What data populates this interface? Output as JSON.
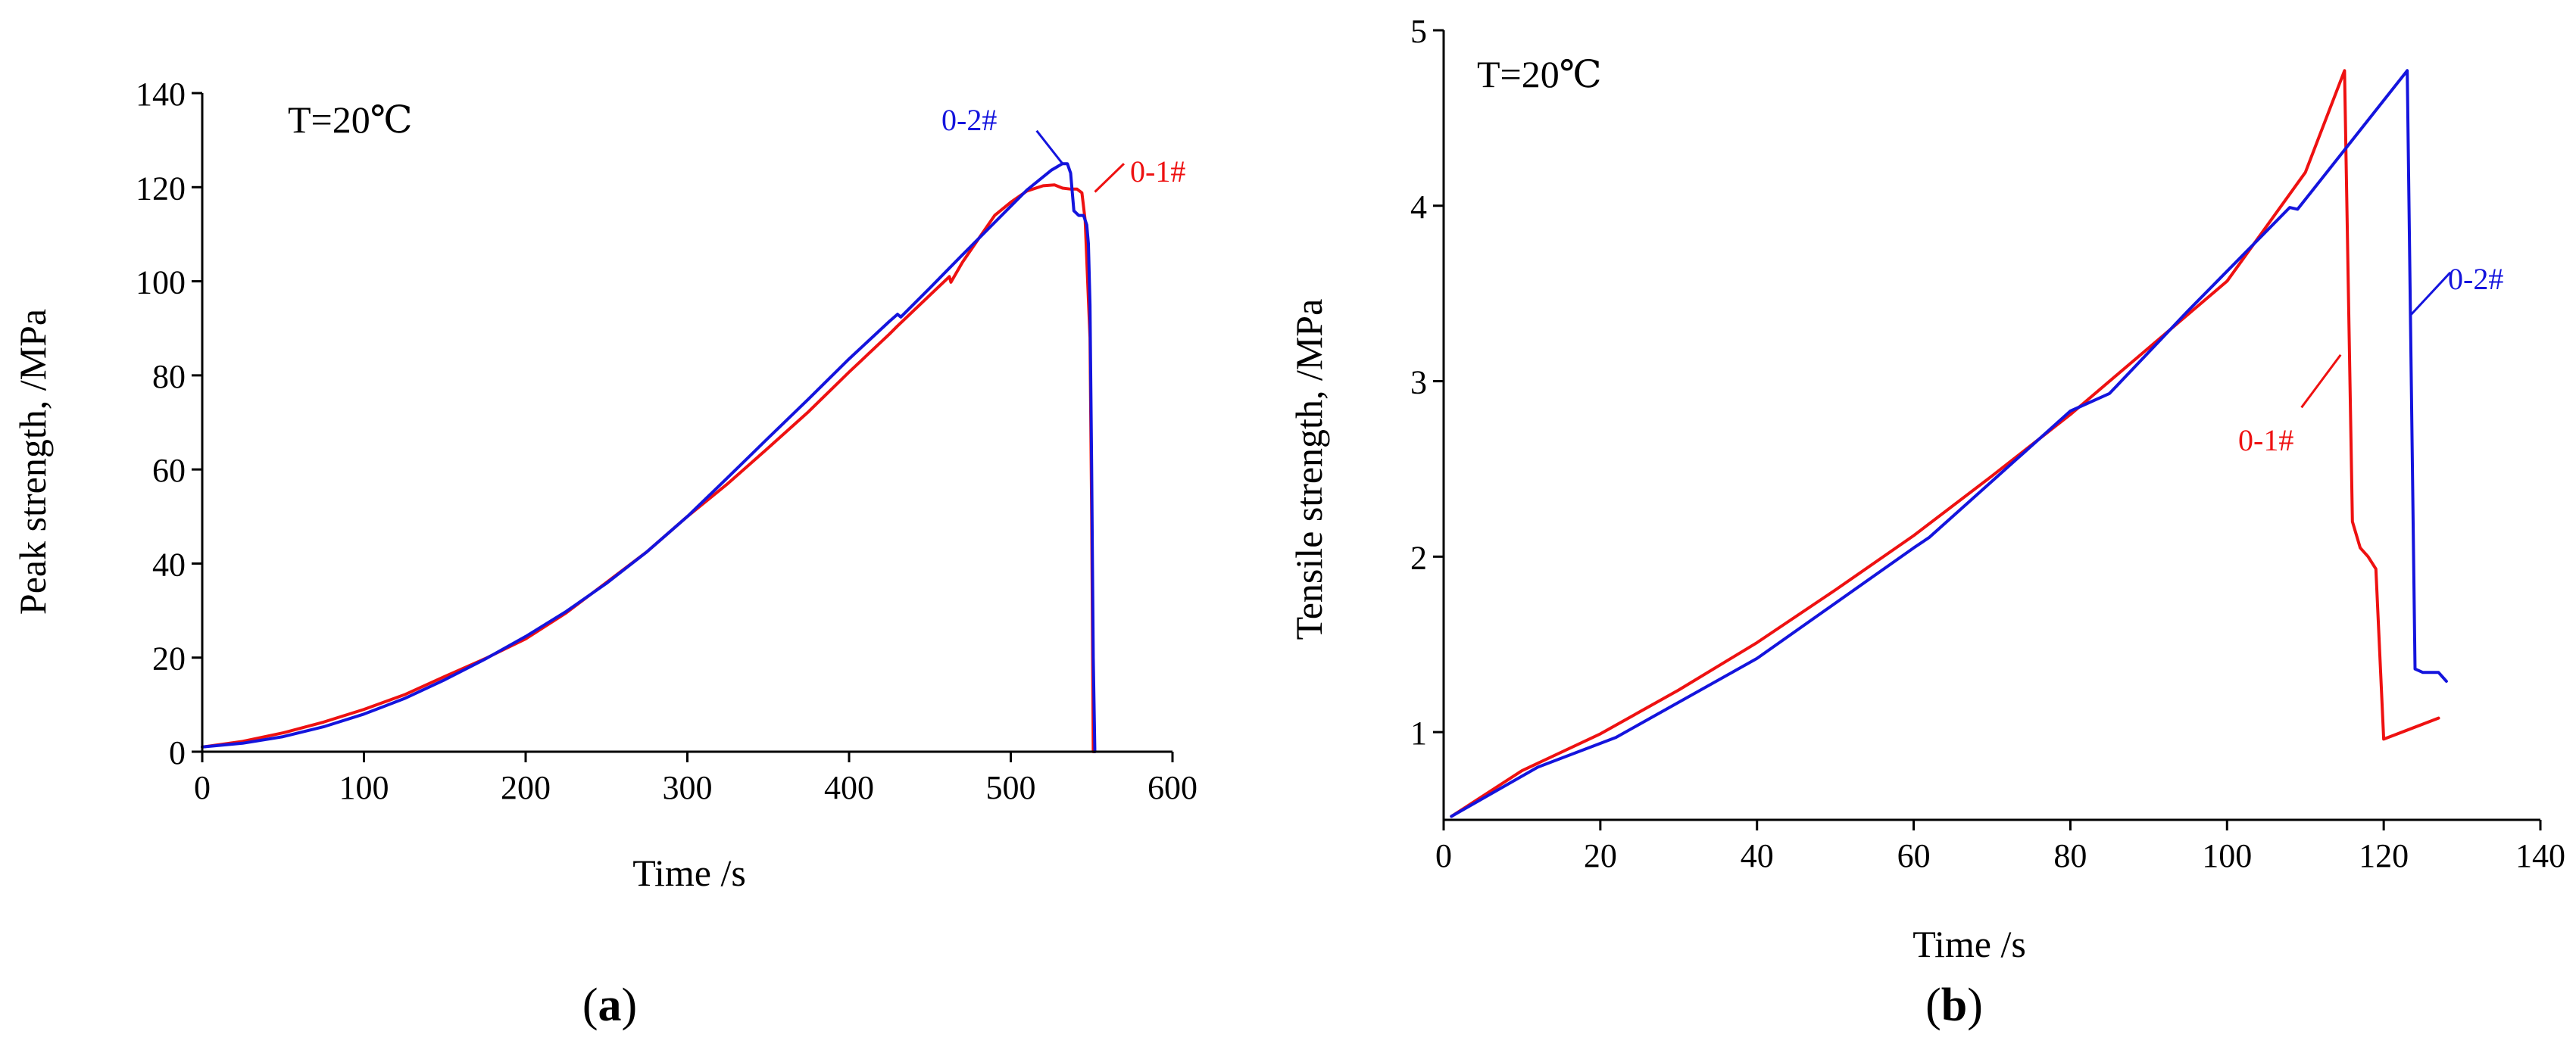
{
  "figure": {
    "panel_a_label": "a",
    "panel_b_label": "b",
    "paren_open": "(",
    "paren_close": ")"
  },
  "colors": {
    "red": "#ee1111",
    "blue": "#1414dd",
    "axis": "#000000"
  },
  "chart_data": [
    {
      "type": "line",
      "panel": "a",
      "title": "",
      "annotation": "T=20℃",
      "xlabel": "Time /s",
      "ylabel": "Peak strength, /MPa",
      "xlim": [
        0,
        600
      ],
      "ylim": [
        0,
        140
      ],
      "xticks": [
        0,
        100,
        200,
        300,
        400,
        500,
        600
      ],
      "yticks": [
        0,
        20,
        40,
        60,
        80,
        100,
        120,
        140
      ],
      "xtick_labels": [
        "0",
        "100",
        "200",
        "300",
        "400",
        "500",
        "600"
      ],
      "ytick_labels": [
        "0",
        "20",
        "40",
        "60",
        "80",
        "100",
        "120",
        "140"
      ],
      "grid": false,
      "series": [
        {
          "name": "0-1#",
          "color": "#ee1111",
          "x": [
            0,
            25,
            50,
            75,
            100,
            125,
            150,
            175,
            200,
            225,
            250,
            275,
            300,
            325,
            350,
            375,
            400,
            425,
            430,
            462,
            463,
            470,
            480,
            490,
            500,
            510,
            520,
            527,
            532,
            537,
            541,
            544,
            546,
            548,
            549,
            550,
            551
          ],
          "y": [
            1,
            2.2,
            4,
            6.3,
            9,
            12.1,
            16,
            19.8,
            24,
            29.5,
            36,
            42.5,
            50,
            57,
            64.6,
            72.3,
            80.7,
            88.8,
            90.5,
            101,
            99.8,
            104,
            109,
            114,
            116.8,
            119.2,
            120.3,
            120.5,
            119.8,
            119.6,
            119.6,
            118.8,
            113,
            96,
            88,
            50,
            0
          ],
          "label_line": [
            [
              552,
              119
            ],
            [
              570,
              125
            ]
          ]
        },
        {
          "name": "0-2#",
          "color": "#1414dd",
          "x": [
            0,
            25,
            50,
            75,
            100,
            125,
            150,
            175,
            200,
            225,
            250,
            275,
            300,
            325,
            350,
            375,
            400,
            425,
            430,
            432,
            450,
            470,
            490,
            510,
            525,
            532,
            535,
            537,
            539,
            542,
            545,
            547,
            548,
            549,
            550,
            551,
            552
          ],
          "y": [
            1,
            1.8,
            3.2,
            5.3,
            8,
            11.3,
            15.3,
            19.7,
            24.5,
            29.8,
            35.8,
            42.5,
            50,
            58.3,
            66.7,
            75,
            83.5,
            91.5,
            93,
            92.4,
            98.6,
            105.6,
            112.5,
            119.4,
            123.6,
            125,
            125,
            123,
            115,
            114,
            114,
            112,
            108,
            95,
            60,
            20,
            0
          ],
          "label_line": [
            [
              532,
              125
            ],
            [
              516,
              132
            ]
          ]
        }
      ]
    },
    {
      "type": "line",
      "panel": "b",
      "title": "",
      "annotation": "T=20℃",
      "xlabel": "Time /s",
      "ylabel": "Tensile strength, /MPa",
      "xlim": [
        0,
        140
      ],
      "ylim": [
        0.5,
        5
      ],
      "xticks": [
        0,
        20,
        40,
        60,
        80,
        100,
        120,
        140
      ],
      "yticks": [
        1,
        2,
        3,
        4,
        5
      ],
      "xtick_labels": [
        "0",
        "20",
        "40",
        "60",
        "80",
        "100",
        "120",
        "140"
      ],
      "ytick_labels": [
        "1",
        "2",
        "3",
        "4",
        "5"
      ],
      "grid": false,
      "series": [
        {
          "name": "0-1#",
          "color": "#ee1111",
          "x": [
            1,
            10,
            20,
            30,
            40,
            50,
            60,
            70,
            80,
            90,
            100,
            110,
            115,
            116,
            117,
            118,
            119,
            120,
            127
          ],
          "y": [
            0.52,
            0.78,
            0.99,
            1.24,
            1.51,
            1.81,
            2.12,
            2.46,
            2.81,
            3.19,
            3.57,
            4.19,
            4.77,
            2.2,
            2.05,
            2.0,
            1.93,
            0.96,
            1.08
          ],
          "label_line": [
            [
              109.5,
              2.85
            ],
            [
              114.5,
              3.15
            ]
          ]
        },
        {
          "name": "0-2#",
          "color": "#1414dd",
          "x": [
            1,
            12,
            22,
            40,
            60,
            62,
            80,
            85,
            95,
            108,
            109,
            123,
            124,
            125,
            127,
            128
          ],
          "y": [
            0.52,
            0.8,
            0.97,
            1.42,
            2.05,
            2.11,
            2.83,
            2.93,
            3.4,
            3.99,
            3.98,
            4.77,
            1.36,
            1.34,
            1.34,
            1.29
          ],
          "label_line": [
            [
              123.5,
              3.38
            ],
            [
              128.5,
              3.62
            ]
          ]
        }
      ]
    }
  ]
}
